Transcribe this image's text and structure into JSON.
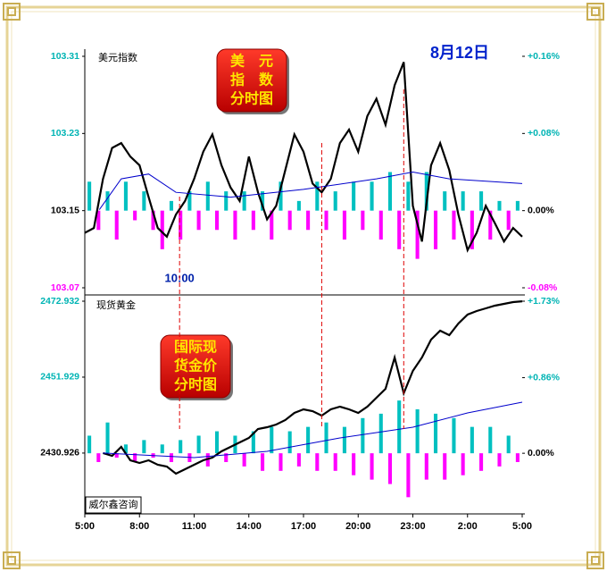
{
  "date": "8月12日",
  "watermark": "威尔鑫咨询",
  "markers": {
    "x": [
      5.2,
      13,
      17.5
    ],
    "color": "#e00000"
  },
  "chart_data": [
    {
      "type": "line",
      "title": "美元指数",
      "badge": [
        "美　元",
        "指　数",
        "分时图"
      ],
      "annotation": {
        "text": "10:00",
        "x": 5.2
      },
      "xlim": [
        0,
        24
      ],
      "ylim": [
        103.07,
        103.31
      ],
      "yticks": [
        103.31,
        103.23,
        103.15,
        103.07
      ],
      "ytick_colors": [
        "#00b4b4",
        "#00b4b4",
        "#000000",
        "#ff00ff"
      ],
      "y2lim": [
        -0.08,
        0.16
      ],
      "y2ticks": [
        {
          "value": 0.16,
          "label": "+0.16%"
        },
        {
          "value": 0.08,
          "label": "+0.08%"
        },
        {
          "value": 0,
          "label": "0.00%"
        },
        {
          "value": -0.08,
          "label": "-0.08%"
        }
      ],
      "y2tick_colors": [
        "#00b4b4",
        "#00b4b4",
        "#000000",
        "#ff00ff"
      ],
      "series": [
        {
          "color": "#000000",
          "x": [
            0,
            0.5,
            1,
            1.5,
            2,
            2.5,
            3,
            3.5,
            4,
            4.5,
            5,
            5.5,
            6,
            6.5,
            7,
            7.5,
            8,
            8.5,
            9,
            9.5,
            10,
            10.5,
            11,
            11.5,
            12,
            12.5,
            13,
            13.5,
            14,
            14.5,
            15,
            15.5,
            16,
            16.5,
            17,
            17.5,
            18,
            18.5,
            19,
            19.5,
            20,
            20.5,
            21,
            21.5,
            22,
            22.5,
            23,
            23.5,
            24
          ],
          "values": [
            103.127,
            103.132,
            103.183,
            103.215,
            103.22,
            103.206,
            103.197,
            103.164,
            103.132,
            103.123,
            103.146,
            103.16,
            103.183,
            103.211,
            103.229,
            103.197,
            103.174,
            103.16,
            103.206,
            103.169,
            103.141,
            103.155,
            103.192,
            103.229,
            103.211,
            103.178,
            103.169,
            103.183,
            103.22,
            103.234,
            103.211,
            103.248,
            103.266,
            103.239,
            103.28,
            103.304,
            103.155,
            103.118,
            103.197,
            103.22,
            103.192,
            103.146,
            103.109,
            103.127,
            103.155,
            103.137,
            103.118,
            103.132,
            103.123
          ]
        },
        {
          "color": "#0000cc",
          "x": [
            0.8,
            2,
            3.5,
            5,
            8,
            12,
            16,
            18,
            20,
            24
          ],
          "values": [
            103.151,
            103.183,
            103.188,
            103.169,
            103.164,
            103.172,
            103.183,
            103.19,
            103.183,
            103.178
          ]
        }
      ],
      "bars": {
        "axis": "y2",
        "up": "#00c0c0",
        "down": "#ff00ff",
        "values": [
          0.03,
          -0.02,
          0.02,
          -0.03,
          0.03,
          -0.01,
          0.02,
          -0.02,
          -0.04,
          0.01,
          -0.03,
          0.02,
          -0.02,
          0.03,
          -0.02,
          0.02,
          -0.03,
          0.02,
          -0.02,
          0.02,
          -0.03,
          0.03,
          -0.02,
          0.01,
          -0.02,
          0.03,
          -0.02,
          0.02,
          -0.03,
          0.03,
          -0.02,
          0.03,
          -0.03,
          0.04,
          -0.04,
          0.03,
          -0.05,
          0.04,
          -0.04,
          0.02,
          -0.03,
          0.02,
          -0.04,
          0.02,
          -0.03,
          0.01,
          -0.02,
          0.01
        ]
      }
    },
    {
      "type": "line",
      "title": "现货黄金",
      "badge": [
        "国际现",
        "货金价",
        "分时图"
      ],
      "xlim": [
        0,
        24
      ],
      "xticks": [
        {
          "value": 0,
          "label": "5:00"
        },
        {
          "value": 3,
          "label": "8:00"
        },
        {
          "value": 6,
          "label": "11:00"
        },
        {
          "value": 9,
          "label": "14:00"
        },
        {
          "value": 12,
          "label": "17:00"
        },
        {
          "value": 15,
          "label": "20:00"
        },
        {
          "value": 18,
          "label": "23:00"
        },
        {
          "value": 21,
          "label": "2:00"
        },
        {
          "value": 24,
          "label": "5:00"
        }
      ],
      "ylim": [
        2414.1,
        2472.932
      ],
      "yticks": [
        2472.932,
        2451.929,
        2430.926
      ],
      "ytick_colors": [
        "#00b4b4",
        "#00b4b4",
        "#000000"
      ],
      "y2lim": [
        -0.69,
        1.73
      ],
      "y2ticks": [
        {
          "value": 1.73,
          "label": "+1.73%"
        },
        {
          "value": 0.86,
          "label": "+0.86%"
        },
        {
          "value": 0,
          "label": "0.00%"
        }
      ],
      "y2tick_colors": [
        "#00b4b4",
        "#00b4b4",
        "#000000"
      ],
      "series": [
        {
          "color": "#000000",
          "x": [
            1,
            1.5,
            2,
            2.5,
            3,
            3.5,
            4,
            4.5,
            5,
            5.5,
            6,
            6.5,
            7,
            7.5,
            8,
            8.5,
            9,
            9.5,
            10,
            10.5,
            11,
            11.5,
            12,
            12.5,
            13,
            13.5,
            14,
            14.5,
            15,
            15.5,
            16,
            16.5,
            17,
            17.5,
            18,
            18.5,
            19,
            19.5,
            20,
            20.5,
            21,
            21.5,
            22,
            22.5,
            23,
            23.5,
            24
          ],
          "values": [
            2430.93,
            2430.17,
            2432.64,
            2428.93,
            2428.19,
            2428.93,
            2427.69,
            2427.2,
            2425.22,
            2426.46,
            2427.69,
            2428.93,
            2429.67,
            2431.4,
            2432.64,
            2433.87,
            2435.11,
            2437.58,
            2438.08,
            2438.82,
            2440.05,
            2442.03,
            2443.02,
            2442.53,
            2441.29,
            2443.02,
            2443.76,
            2443.02,
            2442.03,
            2443.76,
            2446.23,
            2448.71,
            2457.36,
            2447.47,
            2453.65,
            2457.36,
            2462.3,
            2464.77,
            2463.54,
            2466.75,
            2469.22,
            2470.21,
            2470.95,
            2471.69,
            2472.19,
            2472.68,
            2472.9
          ]
        },
        {
          "color": "#0000cc",
          "x": [
            1,
            6,
            10,
            14,
            18,
            21,
            24
          ],
          "values": [
            2430.93,
            2429.67,
            2431.4,
            2435.11,
            2438.08,
            2442.03,
            2445.0
          ]
        }
      ],
      "bars": {
        "axis": "y2",
        "up": "#00c0c0",
        "down": "#ff00ff",
        "values": [
          0.2,
          -0.1,
          0.35,
          -0.05,
          0.1,
          -0.1,
          0.15,
          -0.05,
          0.1,
          -0.1,
          0.15,
          -0.1,
          0.2,
          -0.15,
          0.25,
          -0.1,
          0.2,
          -0.15,
          0.25,
          -0.2,
          0.3,
          -0.2,
          0.25,
          -0.15,
          0.3,
          -0.2,
          0.35,
          -0.2,
          0.3,
          -0.25,
          0.4,
          -0.3,
          0.45,
          -0.35,
          0.6,
          -0.5,
          0.5,
          -0.3,
          0.45,
          -0.3,
          0.4,
          -0.25,
          0.3,
          -0.2,
          0.3,
          -0.15,
          0.2,
          -0.1
        ]
      }
    }
  ]
}
